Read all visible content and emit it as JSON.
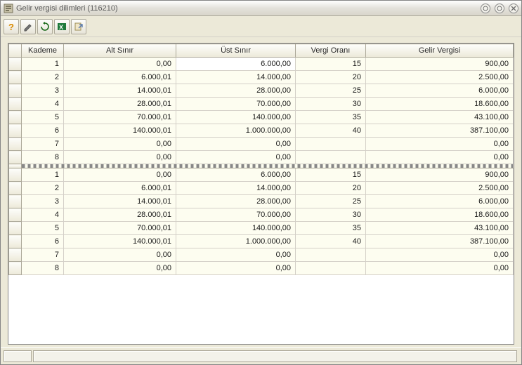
{
  "window": {
    "title": "Gelir vergisi dilimleri (116210)"
  },
  "toolbar": {
    "buttons": [
      "help",
      "edit",
      "refresh",
      "excel",
      "export"
    ]
  },
  "columns": {
    "kademe": "Kademe",
    "alt": "Alt Sınır",
    "ust": "Üst Sınır",
    "oran": "Vergi Oranı",
    "vergi": "Gelir Vergisi"
  },
  "group1": [
    {
      "kademe": "1",
      "alt": "0,00",
      "ust": "6.000,00",
      "oran": "15",
      "vergi": "900,00",
      "sel_ust": true
    },
    {
      "kademe": "2",
      "alt": "6.000,01",
      "ust": "14.000,00",
      "oran": "20",
      "vergi": "2.500,00"
    },
    {
      "kademe": "3",
      "alt": "14.000,01",
      "ust": "28.000,00",
      "oran": "25",
      "vergi": "6.000,00"
    },
    {
      "kademe": "4",
      "alt": "28.000,01",
      "ust": "70.000,00",
      "oran": "30",
      "vergi": "18.600,00"
    },
    {
      "kademe": "5",
      "alt": "70.000,01",
      "ust": "140.000,00",
      "oran": "35",
      "vergi": "43.100,00"
    },
    {
      "kademe": "6",
      "alt": "140.000,01",
      "ust": "1.000.000,00",
      "oran": "40",
      "vergi": "387.100,00"
    },
    {
      "kademe": "7",
      "alt": "0,00",
      "ust": "0,00",
      "oran": "",
      "vergi": "0,00"
    },
    {
      "kademe": "8",
      "alt": "0,00",
      "ust": "0,00",
      "oran": "",
      "vergi": "0,00"
    }
  ],
  "group2": [
    {
      "kademe": "1",
      "alt": "0,00",
      "ust": "6.000,00",
      "oran": "15",
      "vergi": "900,00"
    },
    {
      "kademe": "2",
      "alt": "6.000,01",
      "ust": "14.000,00",
      "oran": "20",
      "vergi": "2.500,00"
    },
    {
      "kademe": "3",
      "alt": "14.000,01",
      "ust": "28.000,00",
      "oran": "25",
      "vergi": "6.000,00"
    },
    {
      "kademe": "4",
      "alt": "28.000,01",
      "ust": "70.000,00",
      "oran": "30",
      "vergi": "18.600,00"
    },
    {
      "kademe": "5",
      "alt": "70.000,01",
      "ust": "140.000,00",
      "oran": "35",
      "vergi": "43.100,00"
    },
    {
      "kademe": "6",
      "alt": "140.000,01",
      "ust": "1.000.000,00",
      "oran": "40",
      "vergi": "387.100,00"
    },
    {
      "kademe": "7",
      "alt": "0,00",
      "ust": "0,00",
      "oran": "",
      "vergi": "0,00"
    },
    {
      "kademe": "8",
      "alt": "0,00",
      "ust": "0,00",
      "oran": "",
      "vergi": "0,00"
    }
  ],
  "colors": {
    "window_bg": "#ece9d8",
    "cell_bg": "#fdfdf0",
    "grid_border": "#d4d0c8",
    "header_border": "#aca899"
  }
}
